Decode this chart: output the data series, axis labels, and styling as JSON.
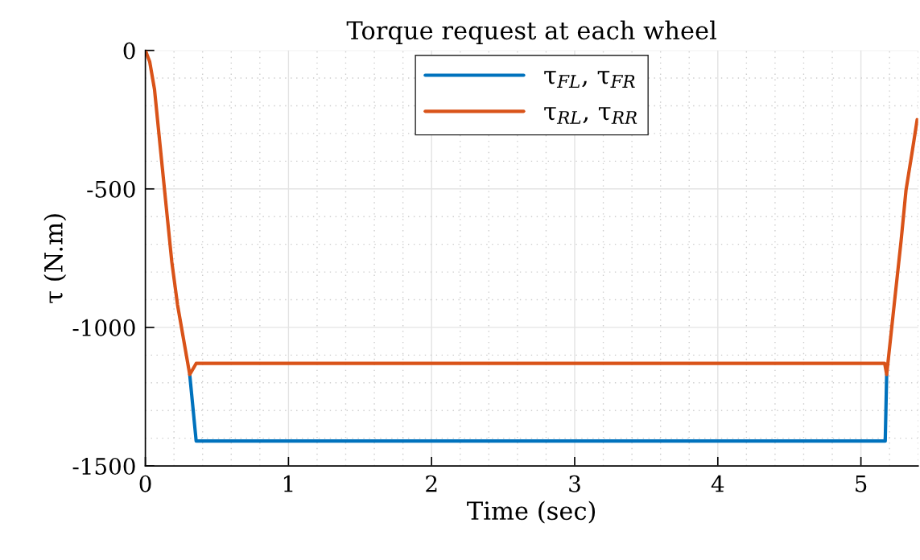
{
  "chart_data": {
    "type": "line",
    "title": "Torque request at each wheel",
    "xlabel": "Time (sec)",
    "ylabel": "τ (N.m)",
    "xlim": [
      0,
      5.4
    ],
    "xticks": [
      0,
      1,
      2,
      3,
      4,
      5
    ],
    "ylim": [
      -1500,
      0
    ],
    "yticks": [
      -1500,
      -1000,
      -500,
      0
    ],
    "grid": true,
    "legend": "top",
    "marker": "none",
    "line_style": "solid",
    "series": [
      {
        "name": "τ$_{FL}$, τ$_{FR}$",
        "color": "#0072bd",
        "x": [
          0.31,
          0.355,
          5.17,
          5.18
        ],
        "values": [
          -1170,
          -1410,
          -1410,
          -1170
        ]
      },
      {
        "name": "τ$_{RL}$, τ$_{RR}$",
        "color": "#d95319",
        "x": [
          0,
          0.03,
          0.064,
          0.104,
          0.144,
          0.185,
          0.225,
          0.31,
          0.355,
          5.166,
          5.18,
          5.232,
          5.281,
          5.315,
          5.36,
          5.393
        ],
        "values": [
          0,
          -40,
          -141,
          -349,
          -555,
          -764,
          -919,
          -1170,
          -1130,
          -1130,
          -1170,
          -920,
          -686,
          -505,
          -360,
          -250
        ]
      }
    ]
  }
}
